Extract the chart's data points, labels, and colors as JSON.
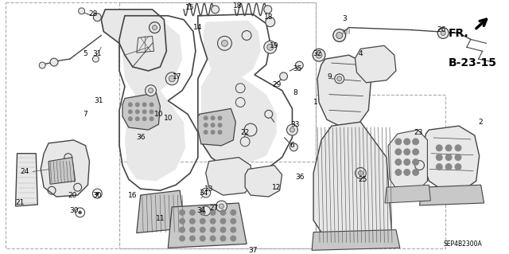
{
  "bg_color": "#ffffff",
  "line_color": "#444444",
  "text_color": "#000000",
  "fig_width": 6.4,
  "fig_height": 3.19,
  "dpi": 100,
  "diagram_code": "SEP4B2300A",
  "ref_code": "B-23-15",
  "direction_label": "FR.",
  "gray_fill": "#c8c8c8",
  "dark_fill": "#888888",
  "light_gray": "#e8e8e8"
}
